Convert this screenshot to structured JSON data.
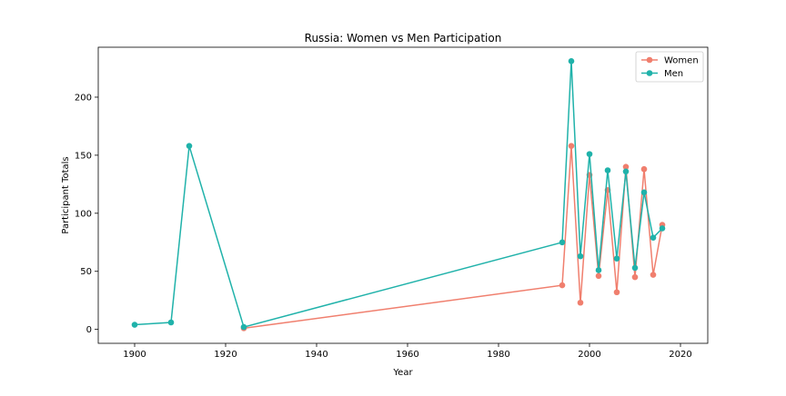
{
  "chart_data": {
    "type": "line",
    "title": "Russia: Women vs Men Participation",
    "xlabel": "Year",
    "ylabel": "Participant Totals",
    "xlim": [
      1892,
      2026
    ],
    "ylim": [
      -12,
      243
    ],
    "xticks": [
      1900,
      1920,
      1940,
      1960,
      1980,
      2000,
      2020
    ],
    "yticks": [
      0,
      50,
      100,
      150,
      200
    ],
    "grid": false,
    "legend_position": "top-right",
    "series": [
      {
        "name": "Women",
        "color": "#f07f6e",
        "x": [
          1924,
          1994,
          1996,
          1998,
          2000,
          2002,
          2004,
          2006,
          2008,
          2010,
          2012,
          2014,
          2016
        ],
        "y": [
          1,
          38,
          158,
          23,
          133,
          46,
          120,
          32,
          140,
          45,
          138,
          47,
          90
        ]
      },
      {
        "name": "Men",
        "color": "#20b2aa",
        "x": [
          1900,
          1908,
          1912,
          1924,
          1994,
          1996,
          1998,
          2000,
          2002,
          2004,
          2006,
          2008,
          2010,
          2012,
          2014,
          2016
        ],
        "y": [
          4,
          6,
          158,
          2,
          75,
          231,
          63,
          151,
          51,
          137,
          61,
          136,
          53,
          118,
          79,
          87
        ]
      }
    ]
  }
}
